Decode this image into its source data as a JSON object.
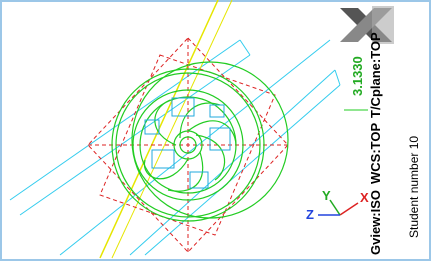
{
  "viewport": {
    "gview": "Gview:ISO",
    "wcs": "WCS:TOP",
    "cplane": "T/Cplane:TOP",
    "dimension": "3.1330",
    "student": "Student number 10",
    "axes": {
      "x": "X",
      "y": "Y",
      "z": "Z"
    }
  }
}
